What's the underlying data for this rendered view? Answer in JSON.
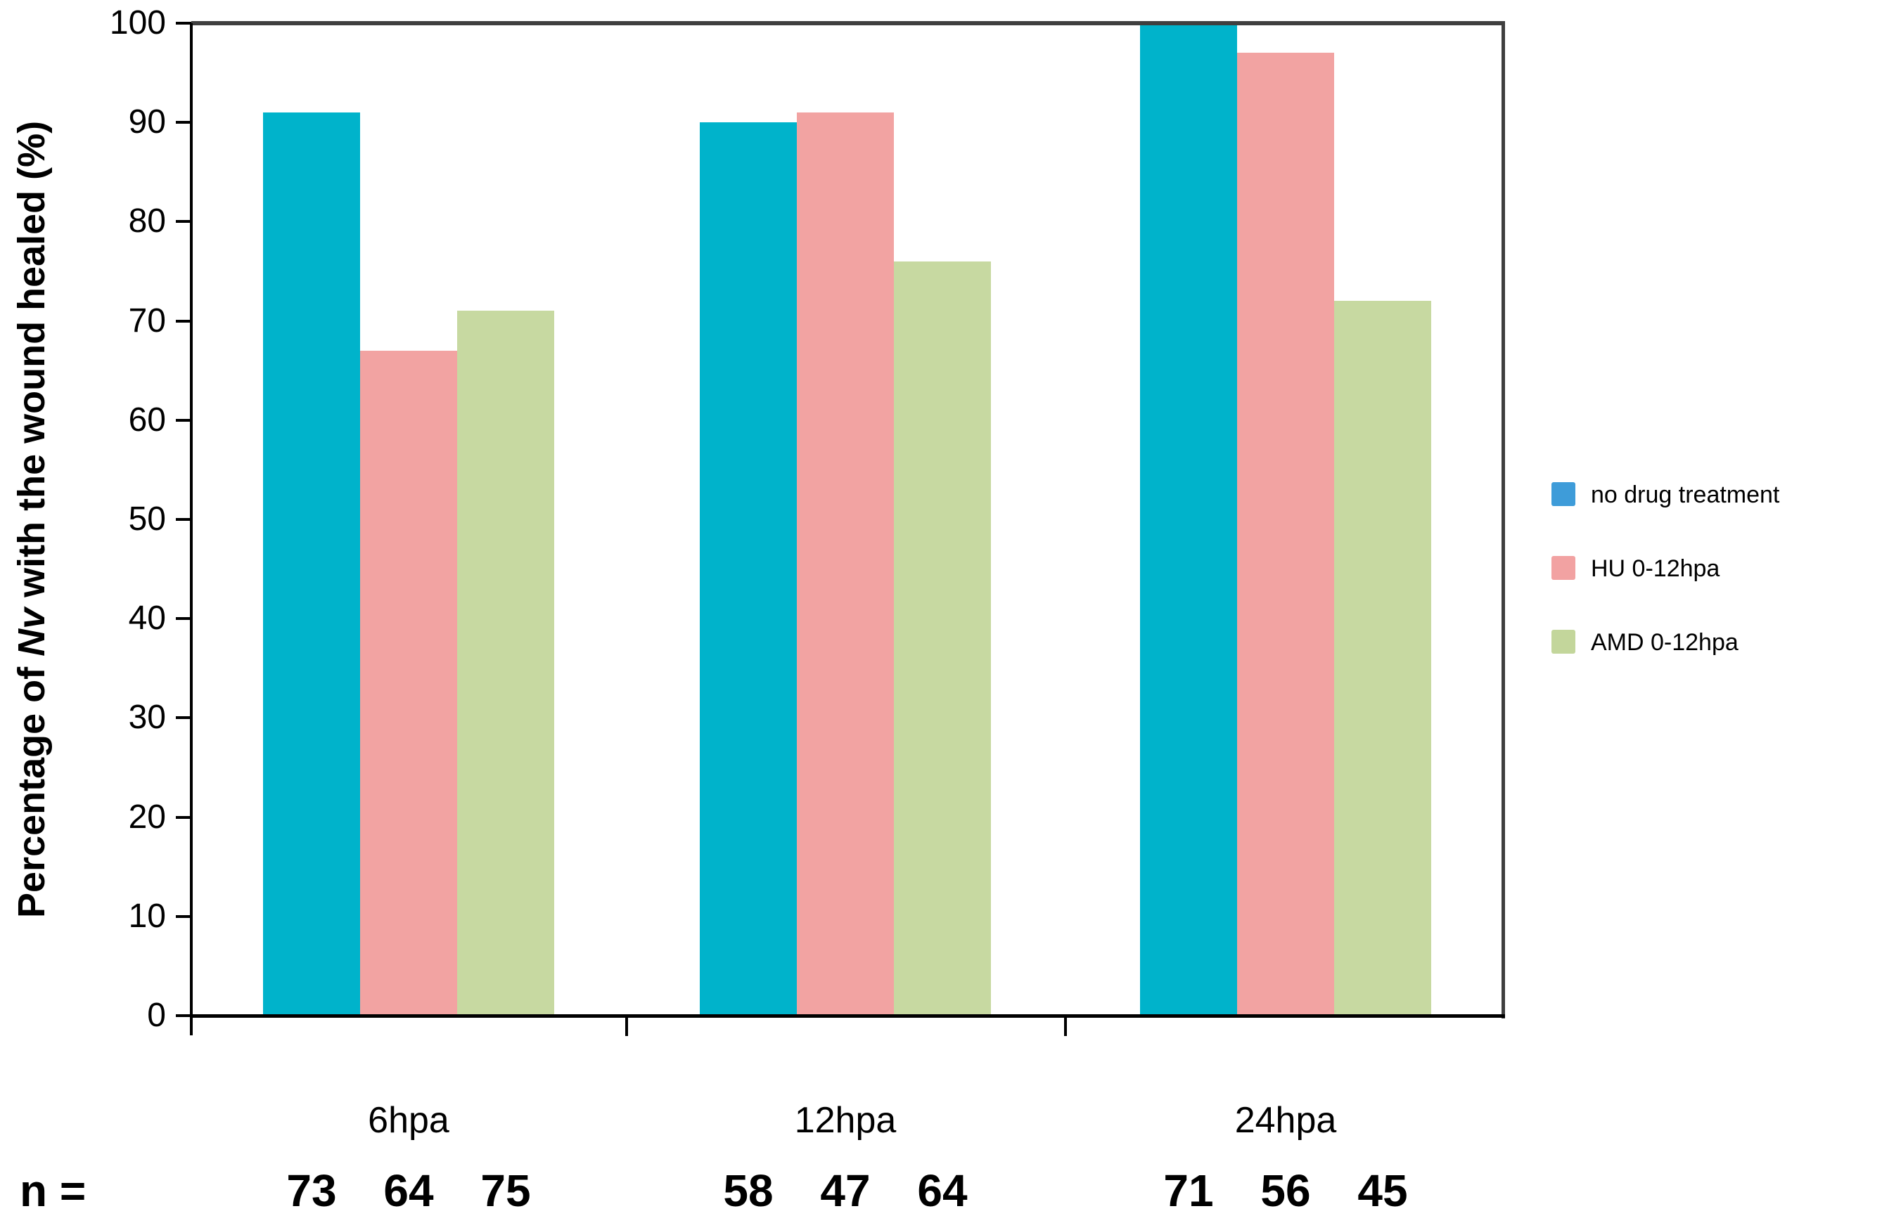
{
  "chart_data": {
    "type": "bar",
    "title": "",
    "ylabel_pre": "Percentage of ",
    "ylabel_italic": "Nv",
    "ylabel_post": " with the wound healed (%)",
    "categories": [
      "6hpa",
      "12hpa",
      "24hpa"
    ],
    "series": [
      {
        "name": "no drug treatment",
        "bar_color": "#00B3CB",
        "legend_color": "#3E9CD9",
        "values": [
          91,
          90,
          100
        ],
        "n": [
          73,
          58,
          71
        ]
      },
      {
        "name": "HU 0-12hpa",
        "bar_color": "#F2A3A2",
        "legend_color": "#F2A2A2",
        "values": [
          67,
          91,
          97
        ],
        "n": [
          64,
          47,
          56
        ]
      },
      {
        "name": "AMD 0-12hpa",
        "bar_color": "#C7D9A1",
        "legend_color": "#C3D69B",
        "values": [
          71,
          76,
          72
        ],
        "n": [
          75,
          64,
          45
        ]
      }
    ],
    "n_label": "n =",
    "y_ticks": [
      0,
      10,
      20,
      30,
      40,
      50,
      60,
      70,
      80,
      90,
      100
    ],
    "ylim": [
      0,
      100
    ],
    "grid": false,
    "legend_position": "right",
    "axis_color": "#000000",
    "frame_color": "#3F3F3F"
  }
}
